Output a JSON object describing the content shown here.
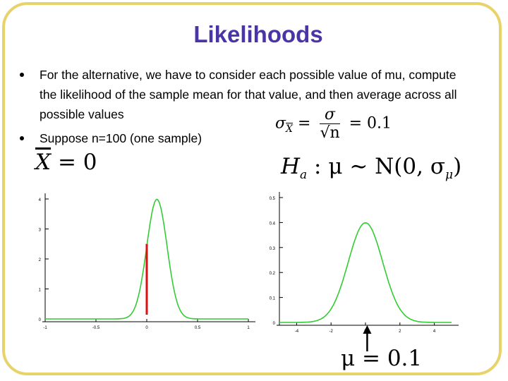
{
  "title": "Likelihoods",
  "bullets": [
    "For the alternative, we have to consider each possible value of mu, compute the likelihood of the sample mean for that value, and then average across all possible values",
    "Suppose n=100 (one sample)"
  ],
  "formulas": {
    "sigma_lhs": "σ",
    "sigma_sub": "X",
    "sigma_num": "σ",
    "sigma_den": "√n",
    "sigma_eq": "=",
    "sigma_val": "= 0.1",
    "xbar_var": "X",
    "xbar_val": "= 0",
    "ha": "H",
    "ha_sub": "a",
    "ha_rest": ": μ ∼ N(0, σ",
    "ha_sub2": "μ",
    "ha_close": ")",
    "mu_label": "μ = 0.1"
  },
  "colors": {
    "title": "#4b35a6",
    "frame": "#e8d36a",
    "curve": "#33cc33",
    "marker": "#dd1111"
  },
  "chart_data": [
    {
      "type": "line",
      "title": "",
      "xlabel": "",
      "ylabel": "",
      "xlim": [
        -1,
        1
      ],
      "ylim": [
        0,
        4
      ],
      "x_ticks": [
        "-1",
        "-0.5",
        "0",
        "0.5",
        "1"
      ],
      "y_ticks": [
        "0",
        "1",
        "2",
        "3",
        "4"
      ],
      "series": [
        {
          "mean": 0.1,
          "sd": 0.1,
          "peak": 3.99
        }
      ],
      "marker_line": {
        "x": 0.0,
        "y_range": [
          0,
          2.5
        ]
      }
    },
    {
      "type": "line",
      "title": "",
      "xlabel": "",
      "ylabel": "",
      "xlim": [
        -5,
        5
      ],
      "ylim": [
        0,
        0.5
      ],
      "x_ticks": [
        "-4",
        "-2",
        "0",
        "2",
        "4"
      ],
      "y_ticks": [
        "0",
        "0.1",
        "0.2",
        "0.3",
        "0.4",
        "0.5"
      ],
      "series": [
        {
          "mean": 0,
          "sd": 1,
          "peak": 0.399
        }
      ],
      "arrow_at_x": 0.1
    }
  ]
}
